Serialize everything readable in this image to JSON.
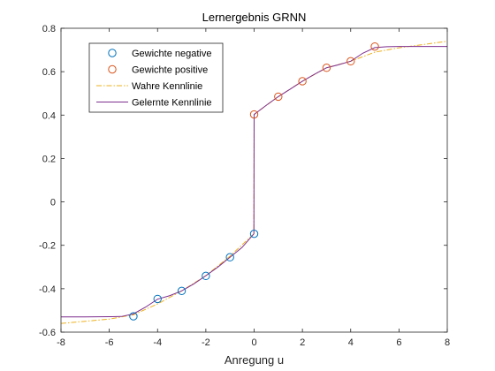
{
  "chart_data": {
    "type": "line",
    "title": "Lernergebnis GRNN",
    "xlabel": "Anregung u",
    "ylabel": "",
    "xlim": [
      -8,
      8
    ],
    "ylim": [
      -0.6,
      0.8
    ],
    "xticks": [
      -8,
      -6,
      -4,
      -2,
      0,
      2,
      4,
      6,
      8
    ],
    "yticks": [
      -0.6,
      -0.4,
      -0.2,
      0,
      0.2,
      0.4,
      0.6,
      0.8
    ],
    "xtick_labels": [
      "-8",
      "-6",
      "-4",
      "-2",
      "0",
      "2",
      "4",
      "6",
      "8"
    ],
    "ytick_labels": [
      "-0.6",
      "-0.4",
      "-0.2",
      "0",
      "0.2",
      "0.4",
      "0.6",
      "0.8"
    ],
    "grid": false,
    "legend_position": "top-left",
    "series": [
      {
        "name": "Gewichte negative",
        "kind": "markers",
        "color": "#0072BD",
        "x": [
          -5,
          -4,
          -3,
          -2,
          -1,
          0
        ],
        "y": [
          -0.527,
          -0.447,
          -0.41,
          -0.341,
          -0.255,
          -0.147
        ]
      },
      {
        "name": "Gewichte positive",
        "kind": "markers",
        "color": "#D95319",
        "x": [
          0,
          1,
          2,
          3,
          4,
          5
        ],
        "y": [
          0.403,
          0.485,
          0.556,
          0.618,
          0.648,
          0.716
        ]
      },
      {
        "name": "Wahre Kennlinie",
        "kind": "dashdot",
        "color": "#EDB120",
        "x": [
          -8,
          -7,
          -6,
          -5,
          -4,
          -3,
          -2,
          -1,
          -0.01,
          0,
          1,
          2,
          3,
          4,
          5,
          6,
          7,
          8
        ],
        "y": [
          -0.56,
          -0.55,
          -0.54,
          -0.52,
          -0.47,
          -0.41,
          -0.34,
          -0.25,
          -0.147,
          0.403,
          0.485,
          0.556,
          0.618,
          0.648,
          0.69,
          0.71,
          0.725,
          0.74
        ]
      },
      {
        "name": "Gelernte Kennlinie",
        "kind": "solid",
        "color": "#7E2F8E",
        "x": [
          -8,
          -7,
          -6,
          -5.5,
          -5,
          -4.5,
          -4,
          -3.5,
          -3,
          -2.5,
          -2,
          -1.5,
          -1,
          -0.5,
          -0.01,
          0,
          0.5,
          1,
          1.5,
          2,
          2.5,
          3,
          3.5,
          4,
          4.5,
          5,
          5.5,
          6,
          7,
          8
        ],
        "y": [
          -0.53,
          -0.53,
          -0.529,
          -0.528,
          -0.516,
          -0.485,
          -0.448,
          -0.432,
          -0.41,
          -0.378,
          -0.34,
          -0.3,
          -0.255,
          -0.21,
          -0.147,
          0.403,
          0.445,
          0.485,
          0.52,
          0.556,
          0.588,
          0.618,
          0.632,
          0.648,
          0.685,
          0.711,
          0.715,
          0.716,
          0.716,
          0.716
        ]
      }
    ]
  }
}
